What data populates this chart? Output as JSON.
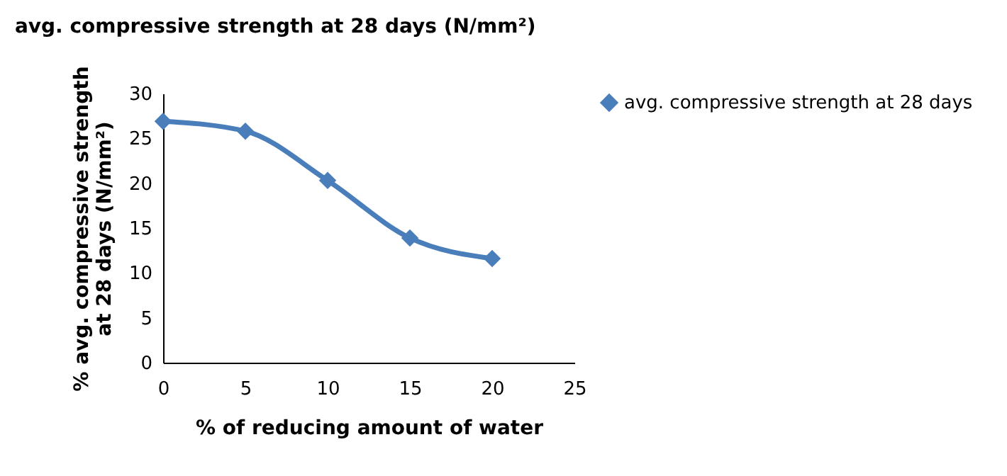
{
  "chart_data": {
    "type": "line",
    "title": "avg. compressive strength at 28 days (N/mm²)",
    "xlabel": "%  of reducing amount of water",
    "ylabel": "% avg. compressive strength at 28 days (N/mm²)",
    "x": [
      0,
      5,
      10,
      15,
      20
    ],
    "series": [
      {
        "name": "avg. compressive strength at 28 days",
        "color": "#4a7ebb",
        "values": [
          26.9,
          25.8,
          20.3,
          13.9,
          11.6
        ]
      }
    ],
    "xlim": [
      0,
      25
    ],
    "xticks": [
      0,
      5,
      10,
      15,
      20,
      25
    ],
    "ylim": [
      0,
      30
    ],
    "yticks": [
      0,
      5,
      10,
      15,
      20,
      25,
      30
    ],
    "grid": false,
    "legend": "right",
    "marker": "diamond",
    "line_style": "solid"
  }
}
